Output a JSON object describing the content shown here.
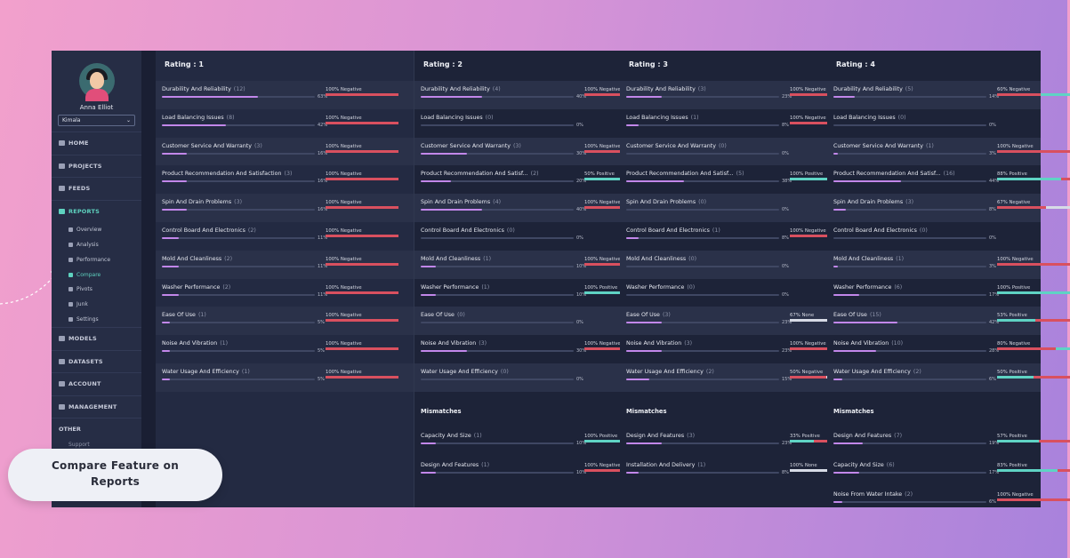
{
  "user": {
    "name": "Anna Elliot",
    "workspace": "Kimala"
  },
  "nav": [
    {
      "key": "home",
      "label": "HOME"
    },
    {
      "key": "projects",
      "label": "PROJECTS"
    },
    {
      "key": "feeds",
      "label": "FEEDS"
    },
    {
      "key": "reports",
      "label": "REPORTS",
      "active": true
    }
  ],
  "subnav": [
    {
      "label": "Overview"
    },
    {
      "label": "Analysis"
    },
    {
      "label": "Performance"
    },
    {
      "label": "Compare",
      "active": true
    },
    {
      "label": "Pivots"
    },
    {
      "label": "Junk"
    },
    {
      "label": "Settings"
    }
  ],
  "nav2": [
    {
      "key": "models",
      "label": "MODELS"
    },
    {
      "key": "datasets",
      "label": "DATASETS"
    },
    {
      "key": "account",
      "label": "ACCOUNT"
    },
    {
      "key": "management",
      "label": "MANAGEMENT"
    }
  ],
  "other": {
    "label": "OTHER",
    "support": "Support"
  },
  "callout": {
    "line1": "Compare Feature on",
    "line2": "Reports"
  },
  "colors": {
    "negative": "#d9505f",
    "positive": "#5fd3c4",
    "none": "#d7dbe6",
    "bar": "#c287ea"
  },
  "columns": [
    {
      "title": "Rating : 1",
      "rows": [
        {
          "name": "Durability And Reliability",
          "count": "(12)",
          "pct": "63%",
          "sentiment": "100% Negative",
          "s": {
            "neg": 1
          }
        },
        {
          "name": "Load Balancing Issues",
          "count": "(8)",
          "pct": "42%",
          "sentiment": "100% Negative",
          "s": {
            "neg": 1
          }
        },
        {
          "name": "Customer Service And Warranty",
          "count": "(3)",
          "pct": "16%",
          "sentiment": "100% Negative",
          "s": {
            "neg": 1
          }
        },
        {
          "name": "Product Recommendation And Satisfaction",
          "count": "(3)",
          "pct": "16%",
          "sentiment": "100% Negative",
          "s": {
            "neg": 1
          }
        },
        {
          "name": "Spin And Drain Problems",
          "count": "(3)",
          "pct": "16%",
          "sentiment": "100% Negative",
          "s": {
            "neg": 1
          }
        },
        {
          "name": "Control Board And Electronics",
          "count": "(2)",
          "pct": "11%",
          "sentiment": "100% Negative",
          "s": {
            "neg": 1
          }
        },
        {
          "name": "Mold And Cleanliness",
          "count": "(2)",
          "pct": "11%",
          "sentiment": "100% Negative",
          "s": {
            "neg": 1
          }
        },
        {
          "name": "Washer Performance",
          "count": "(2)",
          "pct": "11%",
          "sentiment": "100% Negative",
          "s": {
            "neg": 1
          }
        },
        {
          "name": "Ease Of Use",
          "count": "(1)",
          "pct": "5%",
          "sentiment": "100% Negative",
          "s": {
            "neg": 1
          }
        },
        {
          "name": "Noise And Vibration",
          "count": "(1)",
          "pct": "5%",
          "sentiment": "100% Negative",
          "s": {
            "neg": 1
          }
        },
        {
          "name": "Water Usage And Efficiency",
          "count": "(1)",
          "pct": "5%",
          "sentiment": "100% Negative",
          "s": {
            "neg": 1
          }
        }
      ]
    },
    {
      "title": "Rating : 2",
      "rows": [
        {
          "name": "Durability And Reliability",
          "count": "(4)",
          "pct": "40%",
          "sentiment": "100% Negative",
          "s": {
            "neg": 1
          }
        },
        {
          "name": "Load Balancing Issues",
          "count": "(0)",
          "pct": "0%"
        },
        {
          "name": "Customer Service And Warranty",
          "count": "(3)",
          "pct": "30%",
          "sentiment": "100% Negative",
          "s": {
            "neg": 1
          }
        },
        {
          "name": "Product Recommendation And Satisf...",
          "count": "(2)",
          "pct": "20%",
          "sentiment": "50% Positive",
          "s": {
            "pos": 0.5,
            "neg": 0.5
          }
        },
        {
          "name": "Spin And Drain Problems",
          "count": "(4)",
          "pct": "40%",
          "sentiment": "100% Negative",
          "s": {
            "neg": 1
          }
        },
        {
          "name": "Control Board And Electronics",
          "count": "(0)",
          "pct": "0%"
        },
        {
          "name": "Mold And Cleanliness",
          "count": "(1)",
          "pct": "10%",
          "sentiment": "100% Negative",
          "s": {
            "neg": 1
          }
        },
        {
          "name": "Washer Performance",
          "count": "(1)",
          "pct": "10%",
          "sentiment": "100% Positive",
          "s": {
            "pos": 1
          }
        },
        {
          "name": "Ease Of Use",
          "count": "(0)",
          "pct": "0%"
        },
        {
          "name": "Noise And Vibration",
          "count": "(3)",
          "pct": "30%",
          "sentiment": "100% Negative",
          "s": {
            "neg": 1
          }
        },
        {
          "name": "Water Usage And Efficiency",
          "count": "(0)",
          "pct": "0%"
        }
      ],
      "mismatches": {
        "title": "Mismatches",
        "rows": [
          {
            "name": "Capacity And Size",
            "count": "(1)",
            "pct": "10%",
            "sentiment": "100% Positive",
            "s": {
              "pos": 1
            }
          },
          {
            "name": "Design And Features",
            "count": "(1)",
            "pct": "10%",
            "sentiment": "100% Negative",
            "s": {
              "neg": 1
            }
          }
        ]
      }
    },
    {
      "title": "Rating : 3",
      "rows": [
        {
          "name": "Durability And Reliability",
          "count": "(3)",
          "pct": "23%",
          "sentiment": "100% Negative",
          "s": {
            "neg": 1
          }
        },
        {
          "name": "Load Balancing Issues",
          "count": "(1)",
          "pct": "8%",
          "sentiment": "100% Negative",
          "s": {
            "neg": 1
          }
        },
        {
          "name": "Customer Service And Warranty",
          "count": "(0)",
          "pct": "0%"
        },
        {
          "name": "Product Recommendation And Satisf...",
          "count": "(5)",
          "pct": "38%",
          "sentiment": "100% Positive",
          "s": {
            "pos": 1
          }
        },
        {
          "name": "Spin And Drain Problems",
          "count": "(0)",
          "pct": "0%"
        },
        {
          "name": "Control Board And Electronics",
          "count": "(1)",
          "pct": "8%",
          "sentiment": "100% Negative",
          "s": {
            "neg": 1
          }
        },
        {
          "name": "Mold And Cleanliness",
          "count": "(0)",
          "pct": "0%"
        },
        {
          "name": "Washer Performance",
          "count": "(0)",
          "pct": "0%"
        },
        {
          "name": "Ease Of Use",
          "count": "(3)",
          "pct": "23%",
          "sentiment": "67% None",
          "s": {
            "neg": 0.33,
            "none": 0.67
          }
        },
        {
          "name": "Noise And Vibration",
          "count": "(3)",
          "pct": "23%",
          "sentiment": "100% Negative",
          "s": {
            "neg": 1
          }
        },
        {
          "name": "Water Usage And Efficiency",
          "count": "(2)",
          "pct": "15%",
          "sentiment": "50% Negative",
          "s": {
            "neg": 0.5,
            "none": 0.5
          }
        }
      ],
      "mismatches": {
        "title": "Mismatches",
        "rows": [
          {
            "name": "Design And Features",
            "count": "(3)",
            "pct": "23%",
            "sentiment": "33% Positive",
            "s": {
              "pos": 0.33,
              "neg": 0.34,
              "none": 0.33
            }
          },
          {
            "name": "Installation And Delivery",
            "count": "(1)",
            "pct": "8%",
            "sentiment": "100% None",
            "s": {
              "none": 1
            }
          }
        ]
      }
    },
    {
      "title": "Rating : 4",
      "rows": [
        {
          "name": "Durability And Reliability",
          "count": "(5)",
          "pct": "14%",
          "sentiment": "60% Negative",
          "s": {
            "neg": 0.6,
            "pos": 0.4
          }
        },
        {
          "name": "Load Balancing Issues",
          "count": "(0)",
          "pct": "0%"
        },
        {
          "name": "Customer Service And Warranty",
          "count": "(1)",
          "pct": "3%",
          "sentiment": "100% Negative",
          "s": {
            "neg": 1
          }
        },
        {
          "name": "Product Recommendation And Satisf...",
          "count": "(16)",
          "pct": "44%",
          "sentiment": "88% Positive",
          "s": {
            "pos": 0.88,
            "neg": 0.12
          }
        },
        {
          "name": "Spin And Drain Problems",
          "count": "(3)",
          "pct": "8%",
          "sentiment": "67% Negative",
          "s": {
            "neg": 0.67,
            "none": 0.33
          }
        },
        {
          "name": "Control Board And Electronics",
          "count": "(0)",
          "pct": "0%"
        },
        {
          "name": "Mold And Cleanliness",
          "count": "(1)",
          "pct": "3%",
          "sentiment": "100% Negative",
          "s": {
            "neg": 1
          }
        },
        {
          "name": "Washer Performance",
          "count": "(6)",
          "pct": "17%",
          "sentiment": "100% Positive",
          "s": {
            "pos": 1
          }
        },
        {
          "name": "Ease Of Use",
          "count": "(15)",
          "pct": "42%",
          "sentiment": "53% Positive",
          "s": {
            "pos": 0.53,
            "neg": 0.47
          }
        },
        {
          "name": "Noise And Vibration",
          "count": "(10)",
          "pct": "28%",
          "sentiment": "80% Negative",
          "s": {
            "neg": 0.8,
            "pos": 0.2
          }
        },
        {
          "name": "Water Usage And Efficiency",
          "count": "(2)",
          "pct": "6%",
          "sentiment": "50% Positive",
          "s": {
            "pos": 0.5,
            "neg": 0.5
          }
        }
      ],
      "mismatches": {
        "title": "Mismatches",
        "rows": [
          {
            "name": "Design And Features",
            "count": "(7)",
            "pct": "19%",
            "sentiment": "57% Positive",
            "s": {
              "pos": 0.57,
              "neg": 0.43
            }
          },
          {
            "name": "Capacity And Size",
            "count": "(6)",
            "pct": "17%",
            "sentiment": "83% Positive",
            "s": {
              "pos": 0.83,
              "neg": 0.17
            }
          },
          {
            "name": "Noise From Water Intake",
            "count": "(2)",
            "pct": "6%",
            "sentiment": "100% Negative",
            "s": {
              "neg": 1
            }
          }
        ]
      }
    }
  ]
}
